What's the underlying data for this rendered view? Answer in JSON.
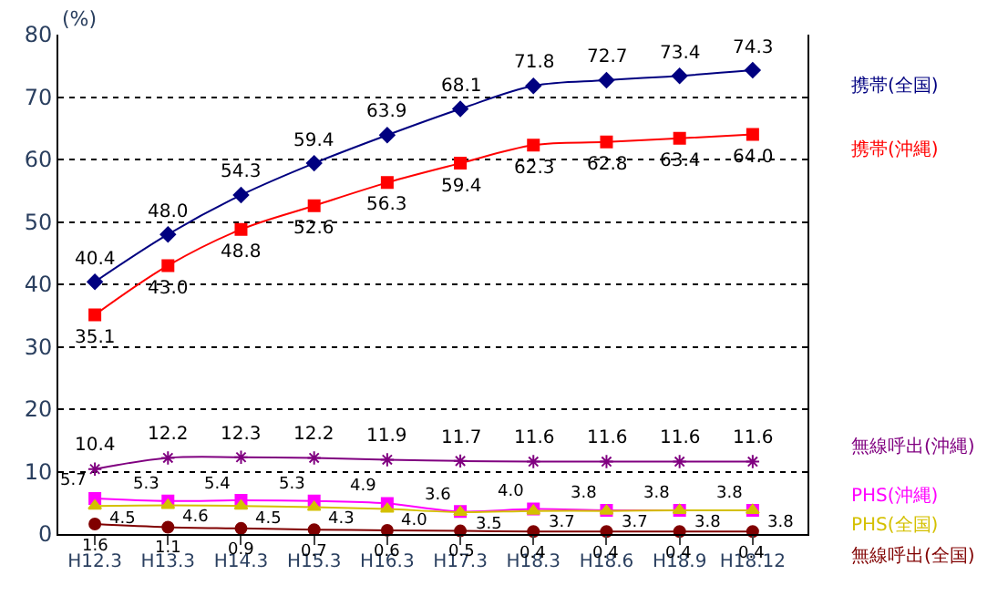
{
  "chart_data": {
    "type": "line",
    "ylabel": "(%)",
    "categories": [
      "H12.3",
      "H13.3",
      "H14.3",
      "H15.3",
      "H16.3",
      "H17.3",
      "H18.3",
      "H18.6",
      "H18.9",
      "H18.12"
    ],
    "series": [
      {
        "name": "携帯(全国)",
        "color": "#000080",
        "marker": "diamond",
        "values": [
          40.4,
          48.0,
          54.3,
          59.4,
          63.9,
          68.1,
          71.8,
          72.7,
          73.4,
          74.3
        ],
        "value_labels": [
          "40.4",
          "48.0",
          "54.3",
          "59.4",
          "63.9",
          "68.1",
          "71.8",
          "72.7",
          "73.4",
          "74.3"
        ]
      },
      {
        "name": "携帯(沖縄)",
        "color": "#ff0000",
        "marker": "square",
        "values": [
          35.1,
          43.0,
          48.8,
          52.6,
          56.3,
          59.4,
          62.3,
          62.8,
          63.4,
          64.0
        ],
        "value_labels": [
          "35.1",
          "43.0",
          "48.8",
          "52.6",
          "56.3",
          "59.4",
          "62.3",
          "62.8",
          "63.4",
          "64.0"
        ]
      },
      {
        "name": "無線呼出(沖縄)",
        "color": "#800080",
        "marker": "cross",
        "values": [
          10.4,
          12.2,
          12.3,
          12.2,
          11.9,
          11.7,
          11.6,
          11.6,
          11.6,
          11.6
        ],
        "value_labels": [
          "10.4",
          "12.2",
          "12.3",
          "12.2",
          "11.9",
          "11.7",
          "11.6",
          "11.6",
          "11.6",
          "11.6"
        ]
      },
      {
        "name": "PHS(沖縄)",
        "color": "#ff00ff",
        "marker": "square",
        "values": [
          5.7,
          5.3,
          5.4,
          5.3,
          4.9,
          3.6,
          4.0,
          3.8,
          3.8,
          3.8
        ],
        "value_labels": [
          "5.7",
          "5.3",
          "5.4",
          "5.3",
          "4.9",
          "3.6",
          "4.0",
          "3.8",
          "3.8",
          "3.8"
        ]
      },
      {
        "name": "PHS(全国)",
        "color": "#d4c000",
        "marker": "triangle",
        "values": [
          4.5,
          4.6,
          4.5,
          4.3,
          4.0,
          3.5,
          3.7,
          3.7,
          3.8,
          3.8
        ],
        "value_labels": [
          "4.5",
          "4.6",
          "4.5",
          "4.3",
          "4.0",
          "3.5",
          "3.7",
          "3.7",
          "3.8",
          "3.8"
        ]
      },
      {
        "name": "無線呼出(全国)",
        "color": "#800000",
        "marker": "circle",
        "values": [
          1.6,
          1.1,
          0.9,
          0.7,
          0.6,
          0.5,
          0.4,
          0.4,
          0.4,
          0.4
        ],
        "value_labels": [
          "1.6",
          "1.1",
          "0.9",
          "0.7",
          "0.6",
          "0.5",
          "0.4",
          "0.4",
          "0.4",
          "0.4"
        ]
      }
    ],
    "ylim": [
      0,
      80
    ],
    "yticks": [
      0,
      10,
      20,
      30,
      40,
      50,
      60,
      70,
      80
    ],
    "grid": "y",
    "legend": false
  }
}
